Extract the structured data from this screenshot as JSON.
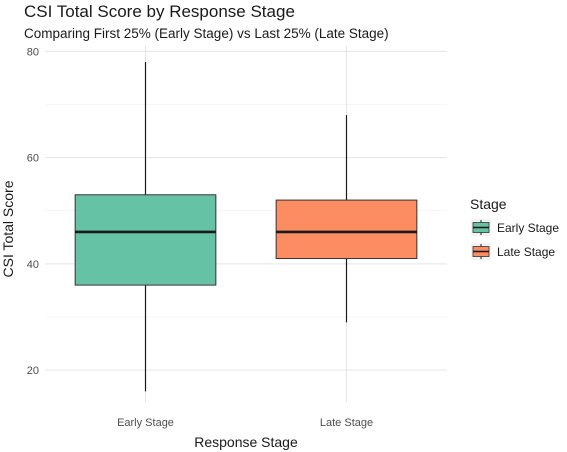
{
  "chart_data": {
    "type": "boxplot",
    "title": "CSI Total Score by Response Stage",
    "subtitle": "Comparing First 25% (Early Stage) vs Last 25% (Late Stage)",
    "xlabel": "Response Stage",
    "ylabel": "CSI Total Score",
    "categories": [
      "Early Stage",
      "Late Stage"
    ],
    "yticks": [
      20,
      40,
      60,
      80
    ],
    "ylim": [
      14,
      81
    ],
    "grid": true,
    "legend": {
      "title": "Stage",
      "placement": "right",
      "entries": [
        "Early Stage",
        "Late Stage"
      ]
    },
    "series": [
      {
        "name": "Early Stage",
        "color": "#66c2a5",
        "min": 16,
        "q1": 36,
        "median": 46,
        "q3": 53,
        "max": 78
      },
      {
        "name": "Late Stage",
        "color": "#fc8d62",
        "min": 29,
        "q1": 41,
        "median": 46,
        "q3": 52,
        "max": 68
      }
    ]
  }
}
